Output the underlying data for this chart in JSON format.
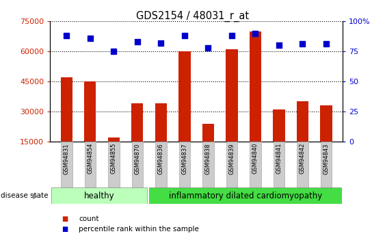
{
  "title": "GDS2154 / 48031_r_at",
  "samples": [
    "GSM94831",
    "GSM94854",
    "GSM94855",
    "GSM94870",
    "GSM94836",
    "GSM94837",
    "GSM94838",
    "GSM94839",
    "GSM94840",
    "GSM94841",
    "GSM94842",
    "GSM94843"
  ],
  "counts": [
    47000,
    45000,
    17000,
    34000,
    34000,
    60000,
    24000,
    61000,
    70000,
    31000,
    35000,
    33000
  ],
  "percentiles": [
    88,
    86,
    75,
    83,
    82,
    88,
    78,
    88,
    90,
    80,
    81,
    81
  ],
  "n_healthy": 4,
  "n_disease": 8,
  "healthy_label": "healthy",
  "disease_label": "inflammatory dilated cardiomyopathy",
  "disease_state_label": "disease state",
  "bar_color": "#cc2200",
  "dot_color": "#0000cc",
  "healthy_bg": "#bbffbb",
  "disease_bg": "#44dd44",
  "tick_label_bg": "#cccccc",
  "ylim_left": [
    15000,
    75000
  ],
  "ylim_right": [
    0,
    100
  ],
  "yticks_left": [
    15000,
    30000,
    45000,
    60000,
    75000
  ],
  "yticks_right": [
    0,
    25,
    50,
    75,
    100
  ],
  "ytick_labels_right": [
    "0",
    "25",
    "50",
    "75",
    "100%"
  ],
  "legend_count": "count",
  "legend_percentile": "percentile rank within the sample",
  "bar_width": 0.5
}
